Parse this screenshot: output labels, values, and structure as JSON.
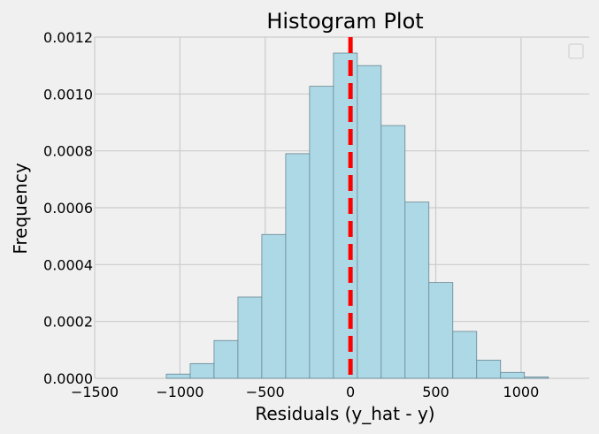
{
  "chart_data": {
    "type": "bar",
    "title": "Histogram Plot",
    "xlabel": "Residuals (y_hat - y)",
    "ylabel": "Frequency",
    "xlim": [
      -1500,
      1400
    ],
    "ylim": [
      0,
      0.0012
    ],
    "xticks": [
      -1500,
      -1000,
      -500,
      0,
      500,
      1000
    ],
    "xtick_labels": [
      "−1500",
      "−1000",
      "−500",
      "0",
      "500",
      "1000"
    ],
    "yticks": [
      0,
      0.0002,
      0.0004,
      0.0006,
      0.0008,
      0.001,
      0.0012
    ],
    "ytick_labels": [
      "0.0000",
      "0.0002",
      "0.0004",
      "0.0006",
      "0.0008",
      "0.0010",
      "0.0012"
    ],
    "grid": true,
    "bin_edges": [
      -1080,
      -940,
      -800,
      -660,
      -520,
      -380,
      -240,
      -100,
      40,
      180,
      320,
      460,
      600,
      740,
      880,
      1020,
      1160
    ],
    "values": [
      1.5e-05,
      5.2e-05,
      0.000133,
      0.000286,
      0.000506,
      0.00079,
      0.001027,
      0.001144,
      0.0011,
      0.000889,
      0.00062,
      0.000337,
      0.000165,
      6.4e-05,
      2.1e-05,
      5e-06
    ],
    "bar_color": "#add8e6",
    "bar_edge_color": "#5d7a84",
    "mean_line": {
      "x": 0,
      "color": "#ff0000",
      "style": "dashed"
    },
    "legend": {
      "placement": "top-right",
      "entries": []
    }
  }
}
